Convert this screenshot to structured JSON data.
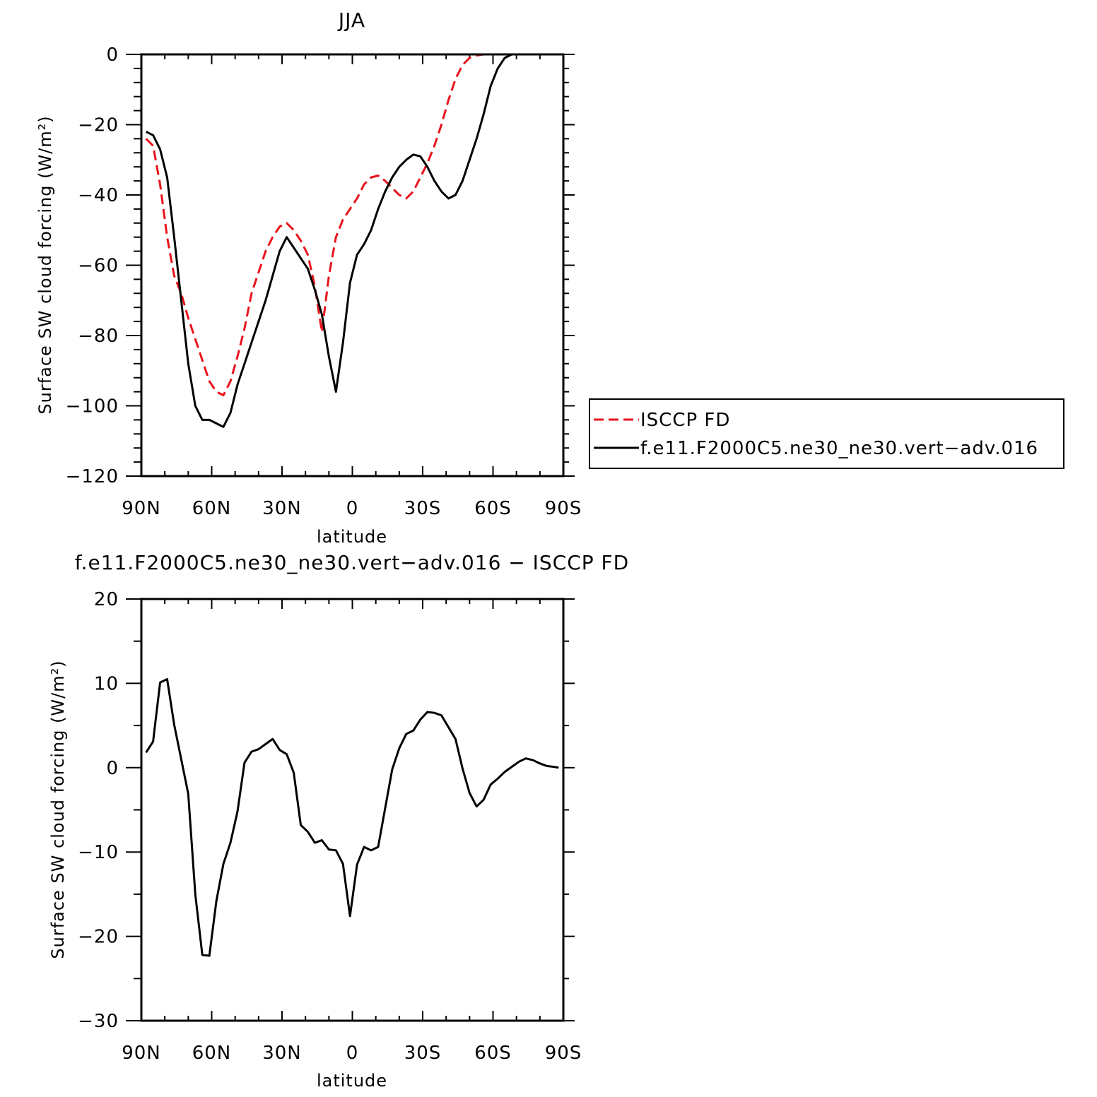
{
  "chart_data": [
    {
      "type": "line",
      "title": "JJA",
      "xlabel": "latitude",
      "ylabel": "Surface SW cloud forcing (W/m²)",
      "xlim": [
        90,
        -90
      ],
      "ylim": [
        -120,
        0
      ],
      "x_ticks": [
        {
          "value": 90,
          "label": "90N"
        },
        {
          "value": 60,
          "label": "60N"
        },
        {
          "value": 30,
          "label": "30N"
        },
        {
          "value": 0,
          "label": "0"
        },
        {
          "value": -30,
          "label": "30S"
        },
        {
          "value": -60,
          "label": "60S"
        },
        {
          "value": -90,
          "label": "90S"
        }
      ],
      "y_ticks": [
        {
          "value": 0,
          "label": "0"
        },
        {
          "value": -20,
          "label": "−20"
        },
        {
          "value": -40,
          "label": "−40"
        },
        {
          "value": -60,
          "label": "−60"
        },
        {
          "value": -80,
          "label": "−80"
        },
        {
          "value": -100,
          "label": "−100"
        },
        {
          "value": -120,
          "label": "−120"
        }
      ],
      "grid": false,
      "legend_position": "right",
      "series": [
        {
          "name": "ISCCP FD",
          "color": "#e8141c",
          "dash": "dashed",
          "x": [
            88,
            85,
            82,
            79,
            76,
            73,
            70,
            67,
            64,
            61,
            58,
            55,
            52,
            49,
            46,
            43,
            40,
            37,
            34,
            31,
            28,
            25,
            22,
            19,
            16,
            13,
            10,
            7,
            4,
            1,
            -2,
            -5,
            -8,
            -11,
            -14,
            -17,
            -20,
            -23,
            -26,
            -29,
            -32,
            -35,
            -38,
            -41,
            -44,
            -47,
            -50,
            -53,
            -56,
            -59,
            -62,
            -65,
            -68,
            -71,
            -74,
            -77,
            -80,
            -83,
            -86,
            -88
          ],
          "y": [
            -24,
            -26,
            -37,
            -52,
            -63,
            -68,
            -75,
            -81,
            -87,
            -93,
            -96,
            -97,
            -93,
            -86,
            -78,
            -68,
            -62,
            -56,
            -52,
            -49,
            -48,
            -50,
            -53,
            -57,
            -66,
            -79,
            -63,
            -52,
            -47,
            -44,
            -41,
            -37,
            -35,
            -34.5,
            -36,
            -38,
            -40,
            -41,
            -39,
            -35,
            -31,
            -26,
            -20,
            -13,
            -7,
            -3,
            -1,
            -0.3,
            0,
            0,
            0,
            0,
            0,
            0,
            0,
            0,
            0,
            0,
            0,
            0
          ]
        },
        {
          "name": "f.e11.F2000C5.ne30_ne30.vert−adv.016",
          "color": "#000000",
          "dash": "solid",
          "x": [
            88,
            85,
            82,
            79,
            76,
            73,
            70,
            67,
            64,
            61,
            58,
            55,
            52,
            49,
            46,
            43,
            40,
            37,
            34,
            31,
            28,
            25,
            22,
            19,
            16,
            13,
            10,
            7,
            4,
            1,
            -2,
            -5,
            -8,
            -11,
            -14,
            -17,
            -20,
            -23,
            -26,
            -29,
            -32,
            -35,
            -38,
            -41,
            -44,
            -47,
            -50,
            -53,
            -56,
            -59,
            -62,
            -65,
            -68,
            -71,
            -74,
            -77,
            -80,
            -83,
            -86,
            -88
          ],
          "y": [
            -22,
            -23,
            -27,
            -35,
            -52,
            -70,
            -88,
            -100,
            -104,
            -104,
            -105,
            -106,
            -102,
            -94,
            -88,
            -82,
            -76,
            -70,
            -63,
            -56,
            -52,
            -55,
            -58,
            -61,
            -67,
            -74,
            -86,
            -96,
            -82,
            -65,
            -57,
            -54,
            -50,
            -44,
            -39,
            -35,
            -32,
            -30,
            -28.5,
            -29,
            -32,
            -36,
            -39,
            -41,
            -40,
            -36,
            -30,
            -24,
            -17,
            -9,
            -4,
            -1,
            0,
            0,
            0,
            0,
            0,
            0,
            0,
            0
          ]
        }
      ]
    },
    {
      "type": "line",
      "title": "f.e11.F2000C5.ne30_ne30.vert−adv.016 − ISCCP FD",
      "xlabel": "latitude",
      "ylabel": "Surface SW cloud forcing (W/m²)",
      "xlim": [
        90,
        -90
      ],
      "ylim": [
        -30,
        20
      ],
      "x_ticks": [
        {
          "value": 90,
          "label": "90N"
        },
        {
          "value": 60,
          "label": "60N"
        },
        {
          "value": 30,
          "label": "30N"
        },
        {
          "value": 0,
          "label": "0"
        },
        {
          "value": -30,
          "label": "30S"
        },
        {
          "value": -60,
          "label": "60S"
        },
        {
          "value": -90,
          "label": "90S"
        }
      ],
      "y_ticks": [
        {
          "value": 20,
          "label": "20"
        },
        {
          "value": 10,
          "label": "10"
        },
        {
          "value": 0,
          "label": "0"
        },
        {
          "value": -10,
          "label": "−10"
        },
        {
          "value": -20,
          "label": "−20"
        },
        {
          "value": -30,
          "label": "−30"
        }
      ],
      "grid": false,
      "series": [
        {
          "color": "#000000",
          "dash": "solid",
          "x": [
            88,
            85,
            82,
            79,
            76,
            73,
            70,
            67,
            64,
            61,
            58,
            55,
            52,
            49,
            46,
            43,
            40,
            37,
            34,
            31,
            28,
            25,
            22,
            19,
            16,
            13,
            10,
            7,
            4,
            1,
            -2,
            -5,
            -8,
            -11,
            -14,
            -17,
            -20,
            -23,
            -26,
            -29,
            -32,
            -35,
            -38,
            -41,
            -44,
            -47,
            -50,
            -53,
            -56,
            -59,
            -62,
            -65,
            -68,
            -71,
            -74,
            -77,
            -80,
            -83,
            -86,
            -88
          ],
          "y": [
            1.8,
            3.1,
            10.1,
            10.5,
            5.1,
            1.0,
            -3.1,
            -15.0,
            -22.2,
            -22.3,
            -15.8,
            -11.4,
            -8.9,
            -5.2,
            0.6,
            1.9,
            2.2,
            2.8,
            3.4,
            2.1,
            1.6,
            -0.6,
            -6.8,
            -7.6,
            -8.9,
            -8.6,
            -9.7,
            -9.8,
            -11.4,
            -17.6,
            -11.5,
            -9.4,
            -9.8,
            -9.4,
            -4.8,
            -0.2,
            2.3,
            4.0,
            4.4,
            5.7,
            6.6,
            6.5,
            6.2,
            4.8,
            3.4,
            -0.1,
            -3.0,
            -4.6,
            -3.8,
            -2.0,
            -1.3,
            -0.5,
            0.1,
            0.7,
            1.1,
            0.9,
            0.5,
            0.2,
            0.1,
            0.0
          ]
        }
      ]
    }
  ]
}
